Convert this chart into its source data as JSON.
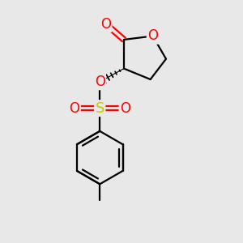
{
  "background_color": "#e8e8e8",
  "bond_color": "#000000",
  "oxygen_color": "#ff0000",
  "sulfur_color": "#c8c800",
  "line_width": 1.6,
  "figsize": [
    3.0,
    3.0
  ],
  "dpi": 100,
  "xlim": [
    0,
    10
  ],
  "ylim": [
    0,
    10
  ]
}
